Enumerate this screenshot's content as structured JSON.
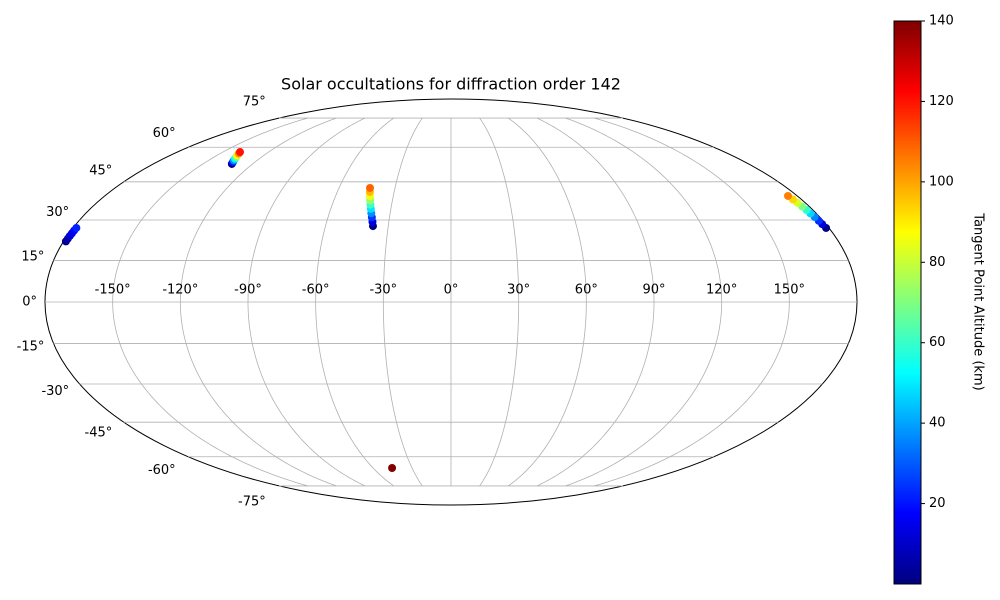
{
  "chart_data": {
    "type": "scatter",
    "projection": "mollweide",
    "title": "Solar occultations for diffraction order 142",
    "colorbar_label": "Tangent Point Altitude (km)",
    "colormap": "jet",
    "clim": [
      0,
      140
    ],
    "cticks": [
      20,
      40,
      60,
      80,
      100,
      120,
      140
    ],
    "grid": true,
    "xticks": [
      {
        "value": -150,
        "label": "-150°"
      },
      {
        "value": -120,
        "label": "-120°"
      },
      {
        "value": -90,
        "label": "-90°"
      },
      {
        "value": -60,
        "label": "-60°"
      },
      {
        "value": -30,
        "label": "-30°"
      },
      {
        "value": 0,
        "label": "0°"
      },
      {
        "value": 30,
        "label": "30°"
      },
      {
        "value": 60,
        "label": "60°"
      },
      {
        "value": 90,
        "label": "90°"
      },
      {
        "value": 120,
        "label": "120°"
      },
      {
        "value": 150,
        "label": "150°"
      }
    ],
    "yticks": [
      {
        "value": -75,
        "label": "-75°"
      },
      {
        "value": -60,
        "label": "-60°"
      },
      {
        "value": -45,
        "label": "-45°"
      },
      {
        "value": -30,
        "label": "-30°"
      },
      {
        "value": -15,
        "label": "-15°"
      },
      {
        "value": 0,
        "label": "0°"
      },
      {
        "value": 15,
        "label": "15°"
      },
      {
        "value": 30,
        "label": "30°"
      },
      {
        "value": 45,
        "label": "45°"
      },
      {
        "value": 60,
        "label": "60°"
      },
      {
        "value": 75,
        "label": "75°"
      }
    ],
    "x": [
      -178.9,
      -178.8,
      -178.7,
      -178.6,
      -178.5,
      -178.4,
      -132.5,
      -133.4,
      -134.3,
      -135.2,
      -136.1,
      -137.0,
      -137.9,
      -138.8,
      -37.3,
      -37.9,
      -38.6,
      -39.3,
      -40.0,
      -40.7,
      -41.4,
      -42.1,
      -42.8,
      -43.4,
      178.6,
      178.2,
      177.9,
      177.5,
      177.1,
      176.8,
      176.4,
      176.0,
      175.6,
      175.2,
      -45.4
    ],
    "y": [
      22.0,
      23.0,
      24.0,
      25.0,
      26.0,
      27.0,
      52.5,
      53.3,
      54.0,
      54.8,
      55.6,
      56.3,
      57.1,
      57.8,
      27.7,
      29.3,
      31.0,
      32.6,
      34.3,
      35.9,
      37.6,
      39.2,
      40.9,
      42.5,
      27.0,
      28.4,
      29.7,
      31.1,
      32.5,
      33.8,
      35.2,
      36.6,
      37.9,
      39.3,
      -65.4
    ],
    "values": [
      2,
      6,
      10,
      14,
      18,
      22,
      2,
      19,
      36,
      53,
      70,
      87,
      104,
      120,
      1,
      13,
      25,
      37,
      49,
      61,
      73,
      85,
      97,
      109,
      1,
      13,
      24,
      36,
      47,
      59,
      70,
      82,
      93,
      105,
      140
    ]
  }
}
